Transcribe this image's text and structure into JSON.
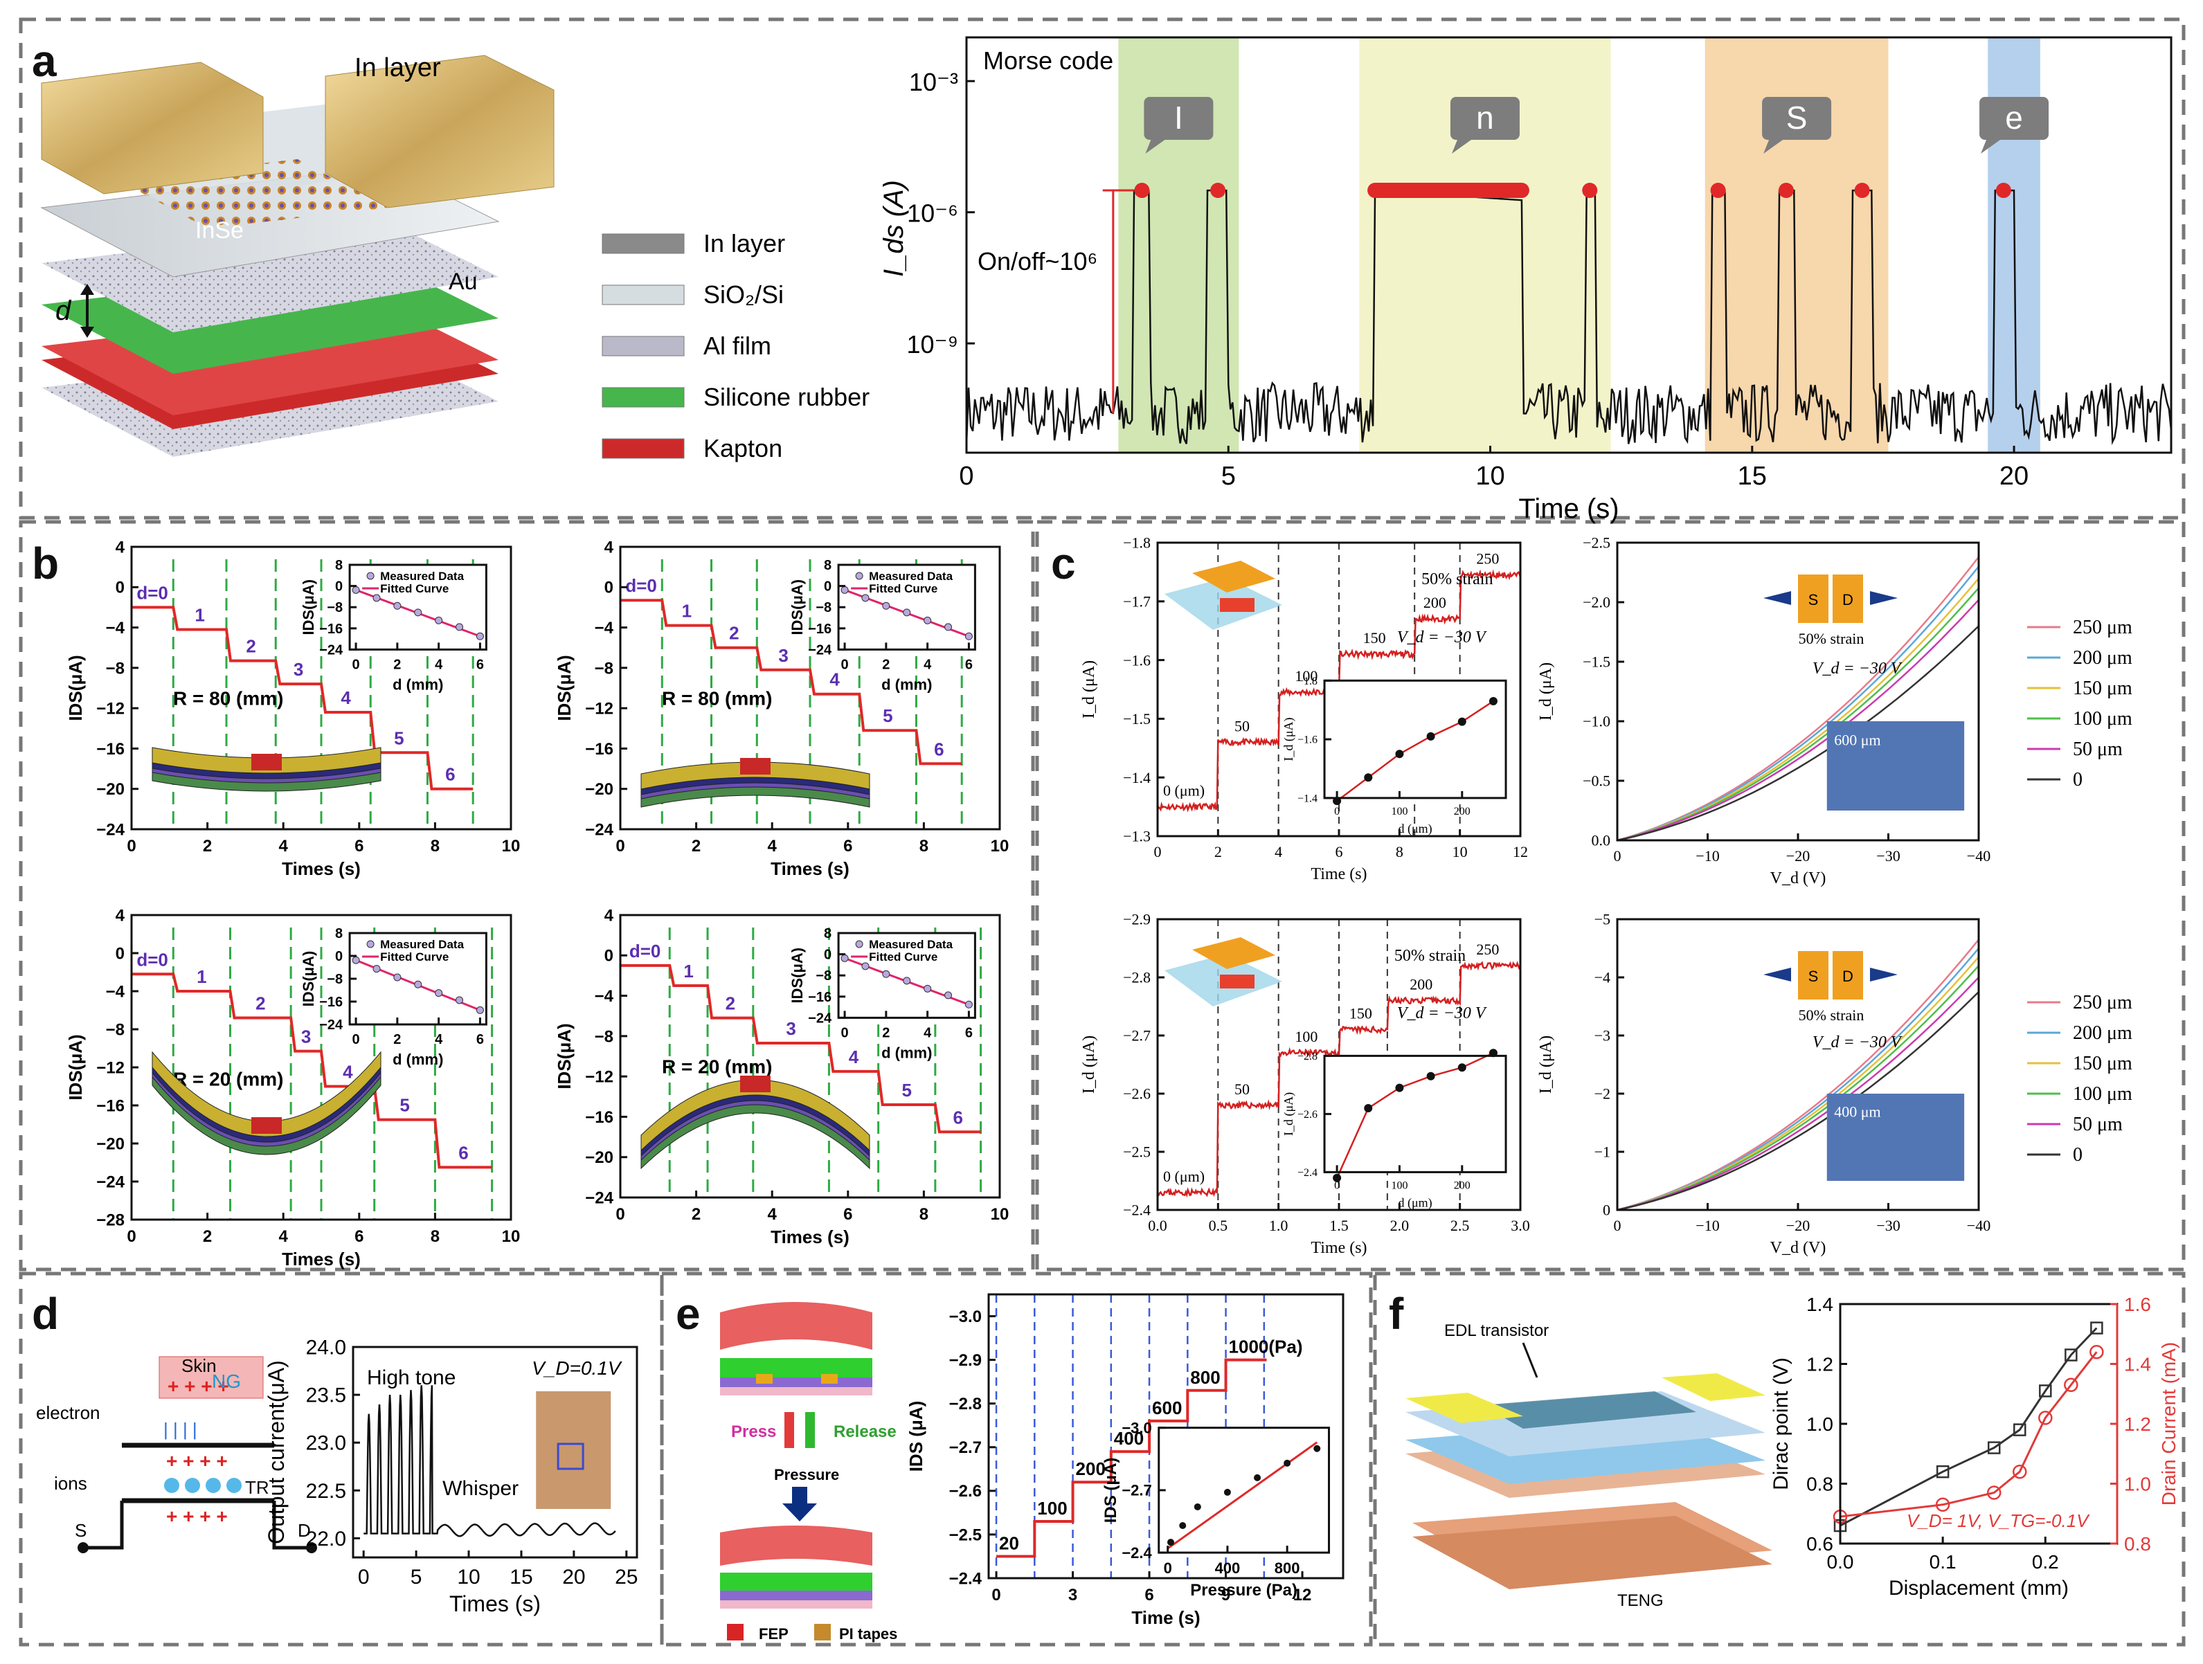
{
  "panel_labels": {
    "a": "a",
    "b": "b",
    "c": "c",
    "d": "d",
    "e": "e",
    "f": "f"
  },
  "panel_a": {
    "device_labels": {
      "in_layer": "In layer",
      "inse": "InSe",
      "au": "Au",
      "d": "d"
    },
    "legend": [
      {
        "label": "In layer",
        "color": "#8a8a8a"
      },
      {
        "label": "SiO₂/Si",
        "color": "#d6dde0"
      },
      {
        "label": "Al film",
        "color": "#b9b9c9"
      },
      {
        "label": "Silicone rubber",
        "color": "#46b64c"
      },
      {
        "label": "Kapton",
        "color": "#cc2a2a"
      }
    ]
  },
  "chart_data": [
    {
      "id": "a-morse",
      "type": "line",
      "title": "Morse code",
      "xlabel": "Time (s)",
      "ylabel": "I_ds (A)",
      "xlim": [
        0,
        23
      ],
      "ylim_log10": [
        -11.5,
        -2
      ],
      "x_ticks": [
        0,
        5,
        10,
        15,
        20
      ],
      "y_ticks": [
        "10⁻³",
        "10⁻⁶",
        "10⁻⁹"
      ],
      "letters": [
        {
          "label": "I",
          "x": [
            2.9,
            5.2
          ],
          "color": "#c9e2a6"
        },
        {
          "label": "n",
          "x": [
            7.5,
            12.3
          ],
          "color": "#f1f1c0"
        },
        {
          "label": "S",
          "x": [
            14.1,
            17.6
          ],
          "color": "#f6d09e"
        },
        {
          "label": "e",
          "x": [
            19.5,
            20.5
          ],
          "color": "#a8c8ea"
        }
      ],
      "annotation": "On/off~10⁶",
      "on_level_log10": -5.5,
      "off_level_log10": -10.6
    },
    {
      "id": "b1",
      "type": "step",
      "ylabel": "IDS(μA)",
      "xlabel": "Times (s)",
      "xlim": [
        0,
        10
      ],
      "ylim": [
        -24,
        4
      ],
      "x_ticks": [
        0,
        2,
        4,
        6,
        8,
        10
      ],
      "y_ticks": [
        4,
        0,
        -4,
        -8,
        -12,
        -16,
        -20,
        -24
      ],
      "radius_label": "R = 80 (mm)",
      "d_labels": [
        "d=0",
        "1",
        "2",
        "3",
        "4",
        "5",
        "6"
      ],
      "t_edges": [
        0,
        1.1,
        2.5,
        3.8,
        5.0,
        6.3,
        7.8,
        9.0
      ],
      "levels": [
        -2,
        -4.2,
        -7.3,
        -9.6,
        -12.4,
        -16.4,
        -20.0
      ]
    },
    {
      "id": "b2",
      "type": "step",
      "ylabel": "IDS(μA)",
      "xlabel": "Times (s)",
      "xlim": [
        0,
        10
      ],
      "ylim": [
        -24,
        4
      ],
      "x_ticks": [
        0,
        2,
        4,
        6,
        8,
        10
      ],
      "y_ticks": [
        4,
        0,
        -4,
        -8,
        -12,
        -16,
        -20,
        -24
      ],
      "radius_label": "R = 80 (mm)",
      "d_labels": [
        "d=0",
        "1",
        "2",
        "3",
        "4",
        "5",
        "6"
      ],
      "t_edges": [
        0,
        1.1,
        2.4,
        3.6,
        5.0,
        6.3,
        7.8,
        9.0
      ],
      "levels": [
        -1.3,
        -3.8,
        -6.0,
        -8.2,
        -10.6,
        -14.2,
        -17.5
      ]
    },
    {
      "id": "b3",
      "type": "step",
      "ylabel": "IDS(μA)",
      "xlabel": "Times (s)",
      "xlim": [
        0,
        10
      ],
      "ylim": [
        -28,
        4
      ],
      "x_ticks": [
        0,
        2,
        4,
        6,
        8,
        10
      ],
      "y_ticks": [
        4,
        0,
        -4,
        -8,
        -12,
        -16,
        -20,
        -24,
        -28
      ],
      "radius_label": "R = 20 (mm)",
      "d_labels": [
        "d=0",
        "1",
        "2",
        "3",
        "4",
        "5",
        "6"
      ],
      "t_edges": [
        0,
        1.1,
        2.6,
        4.2,
        5.0,
        6.4,
        8.0,
        9.5
      ],
      "levels": [
        -2.2,
        -4.0,
        -6.8,
        -10.3,
        -14.0,
        -17.5,
        -22.5
      ]
    },
    {
      "id": "b4",
      "type": "step",
      "ylabel": "IDS(μA)",
      "xlabel": "Times (s)",
      "xlim": [
        0,
        10
      ],
      "ylim": [
        -24,
        4
      ],
      "x_ticks": [
        0,
        2,
        4,
        6,
        8,
        10
      ],
      "y_ticks": [
        4,
        0,
        -4,
        -8,
        -12,
        -16,
        -20,
        -24
      ],
      "radius_label": "R = 20 (mm)",
      "d_labels": [
        "d=0",
        "1",
        "2",
        "3",
        "4",
        "5",
        "6"
      ],
      "t_edges": [
        0,
        1.3,
        2.3,
        3.5,
        5.5,
        6.8,
        8.3,
        9.5
      ],
      "levels": [
        -1.0,
        -3.0,
        -6.2,
        -8.7,
        -11.5,
        -14.8,
        -17.5
      ]
    },
    {
      "id": "b-inset",
      "type": "scatter+line",
      "xlabel": "d (mm)",
      "ylabel": "IDS(μA)",
      "x_ticks": [
        0,
        2,
        4,
        6
      ],
      "y_ticks": [
        8,
        0,
        -8,
        -16,
        -24
      ],
      "legend": [
        "Measured Data",
        "Fitted Curve"
      ],
      "x": [
        0,
        1,
        2,
        3,
        4,
        5,
        6
      ],
      "y": [
        -1.5,
        -4.5,
        -7.5,
        -10,
        -13,
        -15.5,
        -19
      ]
    },
    {
      "id": "c1",
      "type": "line",
      "xlabel": "Time (s)",
      "ylabel": "I_d (μA)",
      "xlim": [
        0,
        12
      ],
      "ylim": [
        -1.3,
        -1.8
      ],
      "x_ticks": [
        0,
        2,
        4,
        6,
        8,
        10,
        12
      ],
      "y_ticks": [
        -1.8,
        -1.7,
        -1.6,
        -1.5,
        -1.4,
        -1.3
      ],
      "step_labels": [
        "0 (μm)",
        "50",
        "100",
        "150",
        "200",
        "250"
      ],
      "strain_label": "50% strain",
      "vd_label": "V_d = −30 V",
      "levels": [
        -1.35,
        -1.46,
        -1.545,
        -1.61,
        -1.67,
        -1.745
      ],
      "inset": {
        "xlabel": "d (μm)",
        "ylabel": "I_d (μA)",
        "x": [
          0,
          50,
          100,
          150,
          200,
          250
        ],
        "y": [
          -1.39,
          -1.47,
          -1.55,
          -1.61,
          -1.66,
          -1.73
        ],
        "x_ticks": [
          0,
          100,
          200
        ],
        "y_ticks": [
          -1.8,
          -1.6,
          -1.4
        ]
      }
    },
    {
      "id": "c2",
      "type": "line",
      "xlabel": "V_d (V)",
      "ylabel": "I_d (μA)",
      "xlim": [
        0,
        -40
      ],
      "ylim": [
        0,
        -2.5
      ],
      "x_ticks": [
        0,
        -10,
        -20,
        -30,
        -40
      ],
      "y_ticks": [
        -2.5,
        -2.0,
        -1.5,
        -1.0,
        -0.5,
        0.0
      ],
      "strain_label": "50% strain",
      "vd_label": "V_d = −30 V",
      "micrograph_label": "600 μm",
      "series": [
        {
          "name": "250 μm",
          "end": -2.38,
          "color": "#e87a8a"
        },
        {
          "name": "200 μm",
          "end": -2.3,
          "color": "#5aa8d8"
        },
        {
          "name": "150 μm",
          "end": -2.2,
          "color": "#e6c03a"
        },
        {
          "name": "100 μm",
          "end": -2.12,
          "color": "#4fbe4a"
        },
        {
          "name": "50 μm",
          "end": -2.02,
          "color": "#cc3ab0"
        },
        {
          "name": "0",
          "end": -1.8,
          "color": "#333333"
        }
      ]
    },
    {
      "id": "c3",
      "type": "line",
      "xlabel": "Time (s)",
      "ylabel": "I_d (μA)",
      "xlim": [
        0,
        3
      ],
      "ylim": [
        -2.4,
        -2.9
      ],
      "x_ticks": [
        0.0,
        0.5,
        1.0,
        1.5,
        2.0,
        2.5,
        3.0
      ],
      "y_ticks": [
        -2.9,
        -2.8,
        -2.7,
        -2.6,
        -2.5,
        -2.4
      ],
      "step_labels": [
        "0 (μm)",
        "50",
        "100",
        "150",
        "200",
        "250"
      ],
      "strain_label": "50% strain",
      "vd_label": "V_d = −30 V",
      "levels": [
        -2.43,
        -2.58,
        -2.67,
        -2.71,
        -2.76,
        -2.82
      ],
      "inset": {
        "xlabel": "d (μm)",
        "ylabel": "I_d (μA)",
        "x": [
          0,
          50,
          100,
          150,
          200,
          250
        ],
        "y": [
          -2.38,
          -2.62,
          -2.69,
          -2.73,
          -2.76,
          -2.81
        ],
        "x_ticks": [
          0,
          100,
          200
        ],
        "y_ticks": [
          -2.8,
          -2.6,
          -2.4
        ]
      }
    },
    {
      "id": "c4",
      "type": "line",
      "xlabel": "V_d (V)",
      "ylabel": "I_d (μA)",
      "xlim": [
        0,
        -40
      ],
      "ylim": [
        0,
        -5
      ],
      "x_ticks": [
        0,
        -10,
        -20,
        -30,
        -40
      ],
      "y_ticks": [
        -5,
        -4,
        -3,
        -2,
        -1,
        0
      ],
      "strain_label": "50% strain",
      "vd_label": "V_d = −30 V",
      "micrograph_label": "400 μm",
      "series": [
        {
          "name": "250 μm",
          "end": -4.65,
          "color": "#e87a8a"
        },
        {
          "name": "200 μm",
          "end": -4.5,
          "color": "#5aa8d8"
        },
        {
          "name": "150 μm",
          "end": -4.35,
          "color": "#e6c03a"
        },
        {
          "name": "100 μm",
          "end": -4.2,
          "color": "#4fbe4a"
        },
        {
          "name": "50 μm",
          "end": -4.0,
          "color": "#cc3ab0"
        },
        {
          "name": "0",
          "end": -3.75,
          "color": "#333333"
        }
      ]
    },
    {
      "id": "d-plot",
      "type": "line",
      "xlabel": "Times (s)",
      "ylabel": "Output current(μA)",
      "xlim": [
        -1,
        26
      ],
      "ylim": [
        21.8,
        24.0
      ],
      "x_ticks": [
        0,
        5,
        10,
        15,
        20,
        25
      ],
      "y_ticks": [
        24.0,
        23.5,
        23.0,
        22.5,
        22.0
      ],
      "annotations": [
        "High tone",
        "Whisper",
        "V_D=0.1V"
      ],
      "peaks": [
        23.3,
        23.4,
        23.5,
        23.5,
        23.55,
        23.6
      ]
    },
    {
      "id": "e-plot",
      "type": "step",
      "xlabel": "Time (s)",
      "ylabel": "IDS (μA)",
      "xlim": [
        -0.3,
        13.6
      ],
      "ylim": [
        -2.4,
        -3.05
      ],
      "x_ticks": [
        0,
        3,
        6,
        9,
        12
      ],
      "y_ticks": [
        -3.0,
        -2.9,
        -2.8,
        -2.7,
        -2.6,
        -2.5,
        -2.4
      ],
      "pressure_labels": [
        "20",
        "100",
        "200",
        "400",
        "600",
        "800",
        "1000(Pa)"
      ],
      "t_edges": [
        0,
        1.5,
        3.0,
        4.5,
        6.0,
        7.5,
        9.0,
        10.5
      ],
      "levels": [
        -2.45,
        -2.53,
        -2.62,
        -2.69,
        -2.76,
        -2.83,
        -2.9
      ],
      "inset": {
        "xlabel": "Pressure (Pa)",
        "ylabel": "IDS (μA)",
        "x_ticks": [
          0,
          400,
          800
        ],
        "y_ticks": [
          -3.0,
          -2.7,
          -2.4
        ],
        "x": [
          20,
          100,
          200,
          400,
          600,
          800,
          1000
        ],
        "y": [
          -2.45,
          -2.53,
          -2.62,
          -2.69,
          -2.76,
          -2.83,
          -2.9
        ]
      }
    },
    {
      "id": "f-plot",
      "type": "line",
      "xlabel": "Displacement (mm)",
      "ylabel_left": "Dirac point (V)",
      "ylabel_right": "Drain Current (mA)",
      "xlim": [
        0,
        0.27
      ],
      "ylim_left": [
        0.6,
        1.4
      ],
      "ylim_right": [
        0.8,
        1.6
      ],
      "x_ticks": [
        0.0,
        0.1,
        0.2
      ],
      "y_ticks_left": [
        0.6,
        0.8,
        1.0,
        1.2,
        1.4
      ],
      "y_ticks_right": [
        0.8,
        1.0,
        1.2,
        1.4,
        1.6
      ],
      "annotation": "V_D= 1V, V_TG=-0.1V",
      "series": [
        {
          "name": "Dirac point",
          "axis": "left",
          "color": "#333333",
          "x": [
            0,
            0.1,
            0.15,
            0.175,
            0.2,
            0.225,
            0.25
          ],
          "y": [
            0.66,
            0.84,
            0.92,
            0.98,
            1.11,
            1.23,
            1.32
          ]
        },
        {
          "name": "Drain Current",
          "axis": "right",
          "color": "#e23a3a",
          "x": [
            0,
            0.1,
            0.15,
            0.175,
            0.2,
            0.225,
            0.25
          ],
          "y": [
            0.89,
            0.93,
            0.97,
            1.04,
            1.22,
            1.33,
            1.44
          ]
        }
      ]
    }
  ],
  "panel_d": {
    "skin": "Skin",
    "ng": "NG",
    "tr": "TR",
    "electron": "electron",
    "ions": "ions",
    "s": "S",
    "d": "D",
    "plus": "+ + + +",
    "minus": "|  |  |  |"
  },
  "panel_e": {
    "press": "Press",
    "release": "Release",
    "pressure": "Pressure",
    "fep": "FEP",
    "pi": "PI tapes"
  },
  "panel_f": {
    "edl": "EDL transistor",
    "teng": "TENG"
  }
}
